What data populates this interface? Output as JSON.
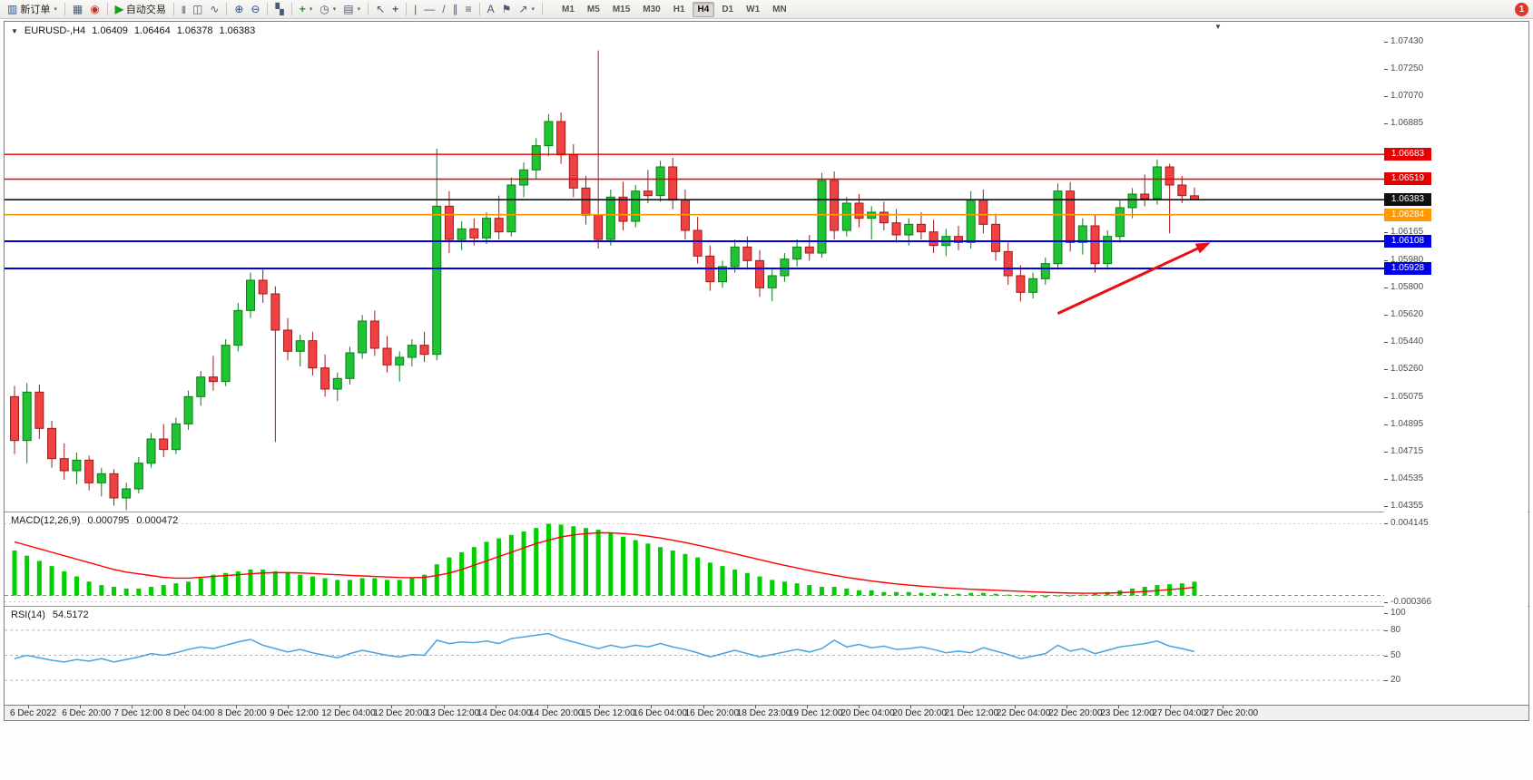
{
  "toolbar": {
    "new_order_label": "新订单",
    "autotrading_label": "自动交易",
    "timeframes": [
      "M1",
      "M5",
      "M15",
      "M30",
      "H1",
      "H4",
      "D1",
      "W1",
      "MN"
    ],
    "active_timeframe": "H4",
    "badge": "1"
  },
  "icons": {
    "new-order": "▥",
    "charts": "▦",
    "community": "◉",
    "play": "▶",
    "bar-chart": "|||",
    "candlestick": "◫",
    "line-chart": "∿",
    "zoom-in": "⊕",
    "zoom-out": "⊖",
    "tile-windows": "▚",
    "indicators": "+",
    "clock": "◷",
    "template": "▤",
    "cursor": "↖",
    "crosshair": "+",
    "vline": "|",
    "hline": "—",
    "trendline": "/",
    "channel": "∥",
    "fibonacci": "≡",
    "text": "A",
    "label": "⚑",
    "arrow-tool": "↗",
    "caret": "▾",
    "symbol-dropdown": "▼",
    "shift-marker": "▼"
  },
  "chart_header": {
    "symbol": "EURUSD-,H4",
    "open": "1.06409",
    "high": "1.06464",
    "low": "1.06378",
    "close": "1.06383"
  },
  "indicators": {
    "macd": {
      "label": "MACD(12,26,9)",
      "value_main": "0.000795",
      "value_signal": "0.000472"
    },
    "rsi": {
      "label": "RSI(14)",
      "value": "54.5172"
    }
  },
  "colors": {
    "bull_fill": "#1ec431",
    "bull_border": "#0b7d1c",
    "bear_fill": "#f04242",
    "bear_border": "#a11a1a",
    "macd_hist": "#00cf00",
    "macd_signal": "#ff0000",
    "rsi_line": "#4aa3df",
    "hline_red": "#e60000",
    "hline_blue": "#0000e6",
    "hline_orange": "#ff9900",
    "hline_black": "#101010",
    "arrow": "#e81010"
  },
  "chart_data": [
    {
      "type": "candlestick",
      "title": "EURUSD- H4",
      "ylim": [
        1.0432,
        1.0756
      ],
      "scale_ticks": [
        "1.07430",
        "1.07250",
        "1.07070",
        "1.06885",
        "1.06165",
        "1.05980",
        "1.05800",
        "1.05620",
        "1.05440",
        "1.05260",
        "1.05075",
        "1.04895",
        "1.04715",
        "1.04535",
        "1.04355"
      ],
      "hlines": [
        {
          "price": 1.06683,
          "label": "1.06683",
          "color": "#e60000",
          "width": 1.4
        },
        {
          "price": 1.06519,
          "label": "1.06519",
          "color": "#e60000",
          "width": 1.4
        },
        {
          "price": 1.06383,
          "label": "1.06383",
          "color": "#101010",
          "width": 1.6
        },
        {
          "price": 1.06284,
          "label": "1.06284",
          "color": "#ff9900",
          "width": 1.6
        },
        {
          "price": 1.06108,
          "label": "1.06108",
          "color": "#0000e6",
          "width": 2
        },
        {
          "price": 1.05928,
          "label": "1.05928",
          "color": "#0000e6",
          "width": 2
        }
      ],
      "arrow": {
        "from_bar": 84,
        "from_price": 1.0563,
        "to_bar": 96.3,
        "to_price": 1.061,
        "color": "#e81010"
      },
      "x_labels": [
        "6 Dec 2022",
        "6 Dec 20:00",
        "7 Dec 12:00",
        "8 Dec 04:00",
        "8 Dec 20:00",
        "9 Dec 12:00",
        "12 Dec 04:00",
        "12 Dec 20:00",
        "13 Dec 12:00",
        "14 Dec 04:00",
        "14 Dec 20:00",
        "15 Dec 12:00",
        "16 Dec 04:00",
        "16 Dec 20:00",
        "18 Dec 23:00",
        "19 Dec 12:00",
        "20 Dec 04:00",
        "20 Dec 20:00",
        "21 Dec 12:00",
        "22 Dec 04:00",
        "22 Dec 20:00",
        "23 Dec 12:00",
        "27 Dec 04:00",
        "27 Dec 20:00"
      ],
      "ohlc": [
        [
          1.0508,
          1.0515,
          1.047,
          1.0479
        ],
        [
          1.0479,
          1.0517,
          1.0464,
          1.0511
        ],
        [
          1.0511,
          1.0516,
          1.048,
          1.0487
        ],
        [
          1.0487,
          1.0492,
          1.0461,
          1.0467
        ],
        [
          1.0467,
          1.0477,
          1.0453,
          1.0459
        ],
        [
          1.0459,
          1.0471,
          1.045,
          1.0466
        ],
        [
          1.0466,
          1.0469,
          1.0446,
          1.0451
        ],
        [
          1.0451,
          1.0461,
          1.0442,
          1.0457
        ],
        [
          1.0457,
          1.046,
          1.0436,
          1.0441
        ],
        [
          1.0441,
          1.0451,
          1.0433,
          1.0447
        ],
        [
          1.0447,
          1.0468,
          1.0444,
          1.0464
        ],
        [
          1.0464,
          1.0484,
          1.0461,
          1.048
        ],
        [
          1.048,
          1.049,
          1.0468,
          1.0473
        ],
        [
          1.0473,
          1.0494,
          1.047,
          1.049
        ],
        [
          1.049,
          1.0512,
          1.0486,
          1.0508
        ],
        [
          1.0508,
          1.0525,
          1.0502,
          1.0521
        ],
        [
          1.0521,
          1.0535,
          1.0512,
          1.0518
        ],
        [
          1.0518,
          1.0546,
          1.0515,
          1.0542
        ],
        [
          1.0542,
          1.057,
          1.0538,
          1.0565
        ],
        [
          1.0565,
          1.059,
          1.056,
          1.0585
        ],
        [
          1.0585,
          1.0593,
          1.057,
          1.0576
        ],
        [
          1.0576,
          1.0581,
          1.0478,
          1.0552
        ],
        [
          1.0552,
          1.056,
          1.0532,
          1.0538
        ],
        [
          1.0538,
          1.0549,
          1.0528,
          1.0545
        ],
        [
          1.0545,
          1.0551,
          1.0522,
          1.0527
        ],
        [
          1.0527,
          1.0536,
          1.0508,
          1.0513
        ],
        [
          1.0513,
          1.0524,
          1.0505,
          1.052
        ],
        [
          1.052,
          1.0541,
          1.0516,
          1.0537
        ],
        [
          1.0537,
          1.0562,
          1.0533,
          1.0558
        ],
        [
          1.0558,
          1.0565,
          1.0535,
          1.054
        ],
        [
          1.054,
          1.0548,
          1.0524,
          1.0529
        ],
        [
          1.0529,
          1.0538,
          1.0518,
          1.0534
        ],
        [
          1.0534,
          1.0546,
          1.0528,
          1.0542
        ],
        [
          1.0542,
          1.0551,
          1.0531,
          1.0536
        ],
        [
          1.0536,
          1.0672,
          1.0532,
          1.0634
        ],
        [
          1.0634,
          1.0644,
          1.0603,
          1.0612
        ],
        [
          1.0612,
          1.0624,
          1.0605,
          1.0619
        ],
        [
          1.0619,
          1.0626,
          1.0608,
          1.0613
        ],
        [
          1.0613,
          1.063,
          1.0609,
          1.0626
        ],
        [
          1.0626,
          1.0641,
          1.0612,
          1.0617
        ],
        [
          1.0617,
          1.0653,
          1.0614,
          1.0648
        ],
        [
          1.0648,
          1.0663,
          1.064,
          1.0658
        ],
        [
          1.0658,
          1.0679,
          1.0652,
          1.0674
        ],
        [
          1.0674,
          1.0695,
          1.0667,
          1.069
        ],
        [
          1.069,
          1.0696,
          1.0662,
          1.0668
        ],
        [
          1.0668,
          1.0675,
          1.064,
          1.0646
        ],
        [
          1.0646,
          1.0654,
          1.0622,
          1.0628
        ],
        [
          1.0628,
          1.0737,
          1.0606,
          1.0612
        ],
        [
          1.0612,
          1.0645,
          1.0608,
          1.064
        ],
        [
          1.064,
          1.065,
          1.0618,
          1.0624
        ],
        [
          1.0624,
          1.0648,
          1.062,
          1.0644
        ],
        [
          1.0644,
          1.0658,
          1.0636,
          1.0641
        ],
        [
          1.0641,
          1.0664,
          1.0637,
          1.066
        ],
        [
          1.066,
          1.0666,
          1.0632,
          1.0638
        ],
        [
          1.0638,
          1.0645,
          1.0612,
          1.0618
        ],
        [
          1.0618,
          1.0627,
          1.0596,
          1.0601
        ],
        [
          1.0601,
          1.0608,
          1.0578,
          1.0584
        ],
        [
          1.0584,
          1.0598,
          1.058,
          1.0594
        ],
        [
          1.0594,
          1.0612,
          1.059,
          1.0607
        ],
        [
          1.0607,
          1.0614,
          1.0592,
          1.0598
        ],
        [
          1.0598,
          1.0605,
          1.0574,
          1.058
        ],
        [
          1.058,
          1.0592,
          1.0571,
          1.0588
        ],
        [
          1.0588,
          1.0603,
          1.0584,
          1.0599
        ],
        [
          1.0599,
          1.0612,
          1.0594,
          1.0607
        ],
        [
          1.0607,
          1.0615,
          1.0598,
          1.0603
        ],
        [
          1.0603,
          1.0656,
          1.06,
          1.0651
        ],
        [
          1.0651,
          1.0657,
          1.0612,
          1.0618
        ],
        [
          1.0618,
          1.064,
          1.0614,
          1.0636
        ],
        [
          1.0636,
          1.0642,
          1.062,
          1.0626
        ],
        [
          1.0626,
          1.0634,
          1.0612,
          1.063
        ],
        [
          1.063,
          1.0637,
          1.0618,
          1.0623
        ],
        [
          1.0623,
          1.0632,
          1.061,
          1.0615
        ],
        [
          1.0615,
          1.0626,
          1.0608,
          1.0622
        ],
        [
          1.0622,
          1.063,
          1.0612,
          1.0617
        ],
        [
          1.0617,
          1.0625,
          1.0603,
          1.0608
        ],
        [
          1.0608,
          1.0619,
          1.0601,
          1.0614
        ],
        [
          1.0614,
          1.0621,
          1.0605,
          1.061
        ],
        [
          1.061,
          1.0644,
          1.0606,
          1.0638
        ],
        [
          1.0638,
          1.0645,
          1.0616,
          1.0622
        ],
        [
          1.0622,
          1.0629,
          1.0598,
          1.0604
        ],
        [
          1.0604,
          1.061,
          1.0582,
          1.0588
        ],
        [
          1.0588,
          1.0595,
          1.0571,
          1.0577
        ],
        [
          1.0577,
          1.059,
          1.0573,
          1.0586
        ],
        [
          1.0586,
          1.06,
          1.0582,
          1.0596
        ],
        [
          1.0596,
          1.0649,
          1.0592,
          1.0644
        ],
        [
          1.0644,
          1.065,
          1.0604,
          1.061
        ],
        [
          1.061,
          1.0626,
          1.0602,
          1.0621
        ],
        [
          1.0621,
          1.0628,
          1.059,
          1.0596
        ],
        [
          1.0596,
          1.0618,
          1.0592,
          1.0614
        ],
        [
          1.0614,
          1.0638,
          1.061,
          1.0633
        ],
        [
          1.0633,
          1.0646,
          1.0626,
          1.0642
        ],
        [
          1.0642,
          1.0655,
          1.0634,
          1.0639
        ],
        [
          1.0639,
          1.0665,
          1.0635,
          1.066
        ],
        [
          1.066,
          1.0662,
          1.0616,
          1.0648
        ],
        [
          1.0648,
          1.0654,
          1.0636,
          1.0641
        ],
        [
          1.06409,
          1.06464,
          1.06378,
          1.06383
        ]
      ]
    },
    {
      "type": "bar",
      "name": "MACD(12,26,9)",
      "ylim": [
        -0.0006,
        0.0048
      ],
      "zero_line": true,
      "axis_labels": [
        {
          "v": 0.004145,
          "t": "0.004145"
        },
        {
          "v": -0.000366,
          "t": "-0.000366"
        }
      ],
      "histogram": [
        0.0026,
        0.0023,
        0.002,
        0.0017,
        0.0014,
        0.0011,
        0.0008,
        0.0006,
        0.0005,
        0.0004,
        0.0004,
        0.0005,
        0.0006,
        0.0007,
        0.0008,
        0.001,
        0.0012,
        0.0013,
        0.0014,
        0.0015,
        0.0015,
        0.0014,
        0.0013,
        0.0012,
        0.0011,
        0.001,
        0.0009,
        0.0009,
        0.001,
        0.001,
        0.0009,
        0.0009,
        0.001,
        0.0012,
        0.0018,
        0.0022,
        0.0025,
        0.0028,
        0.0031,
        0.0033,
        0.0035,
        0.0037,
        0.0039,
        0.004145,
        0.0041,
        0.004,
        0.0039,
        0.0038,
        0.0036,
        0.0034,
        0.0032,
        0.003,
        0.0028,
        0.0026,
        0.0024,
        0.0022,
        0.0019,
        0.0017,
        0.0015,
        0.0013,
        0.0011,
        0.0009,
        0.0008,
        0.0007,
        0.0006,
        0.0005,
        0.0005,
        0.0004,
        0.0003,
        0.0003,
        0.0002,
        0.0002,
        0.0002,
        0.00015,
        0.00015,
        0.0001,
        0.0001,
        0.00015,
        0.00015,
        0.0001,
        5e-05,
        -5e-05,
        -0.0001,
        -0.0001,
        -5e-05,
        -5e-05,
        5e-05,
        0.0001,
        0.0002,
        0.0003,
        0.0004,
        0.0005,
        0.0006,
        0.00065,
        0.0007,
        0.000795
      ],
      "signal": [
        0.0031,
        0.0029,
        0.0027,
        0.0025,
        0.0023,
        0.0021,
        0.0019,
        0.0017,
        0.0015,
        0.00135,
        0.00125,
        0.00115,
        0.00105,
        0.001,
        0.001,
        0.00105,
        0.0011,
        0.00115,
        0.0012,
        0.00125,
        0.0013,
        0.00132,
        0.00132,
        0.0013,
        0.00127,
        0.00123,
        0.0012,
        0.00116,
        0.00113,
        0.0011,
        0.00107,
        0.00104,
        0.00103,
        0.00105,
        0.00115,
        0.0013,
        0.0015,
        0.00175,
        0.002,
        0.00225,
        0.0025,
        0.00275,
        0.003,
        0.0032,
        0.00338,
        0.0035,
        0.00358,
        0.00362,
        0.00362,
        0.00358,
        0.00352,
        0.00343,
        0.00332,
        0.0032,
        0.00306,
        0.00291,
        0.00275,
        0.00258,
        0.00241,
        0.00224,
        0.00207,
        0.0019,
        0.00174,
        0.00159,
        0.00144,
        0.0013,
        0.00117,
        0.00105,
        0.00094,
        0.00084,
        0.00075,
        0.00067,
        0.0006,
        0.00054,
        0.00049,
        0.00044,
        0.0004,
        0.00036,
        0.00033,
        0.0003,
        0.00027,
        0.00024,
        0.00021,
        0.00018,
        0.00016,
        0.00014,
        0.00013,
        0.00013,
        0.00014,
        0.00016,
        0.00019,
        0.00023,
        0.00028,
        0.00034,
        0.0004,
        0.000472
      ]
    },
    {
      "type": "line",
      "name": "RSI(14)",
      "ylim": [
        -8,
        108
      ],
      "levels": [
        80,
        50,
        20
      ],
      "axis_labels": [
        {
          "v": 100,
          "t": "100"
        },
        {
          "v": 80,
          "t": "80"
        },
        {
          "v": 50,
          "t": "50"
        },
        {
          "v": 20,
          "t": "20"
        }
      ],
      "values": [
        46,
        50,
        47,
        44,
        42,
        45,
        43,
        46,
        42,
        45,
        48,
        52,
        50,
        53,
        57,
        60,
        58,
        62,
        66,
        69,
        62,
        58,
        54,
        57,
        53,
        50,
        47,
        52,
        56,
        53,
        50,
        48,
        51,
        50,
        68,
        64,
        66,
        65,
        67,
        64,
        70,
        72,
        74,
        76,
        70,
        66,
        62,
        58,
        62,
        59,
        62,
        60,
        64,
        60,
        57,
        53,
        48,
        52,
        56,
        52,
        48,
        51,
        54,
        57,
        54,
        58,
        68,
        60,
        63,
        59,
        61,
        57,
        58,
        60,
        57,
        53,
        55,
        53,
        59,
        55,
        51,
        46,
        49,
        52,
        62,
        55,
        58,
        52,
        56,
        60,
        62,
        64,
        67,
        61,
        58,
        54.5172
      ]
    }
  ]
}
